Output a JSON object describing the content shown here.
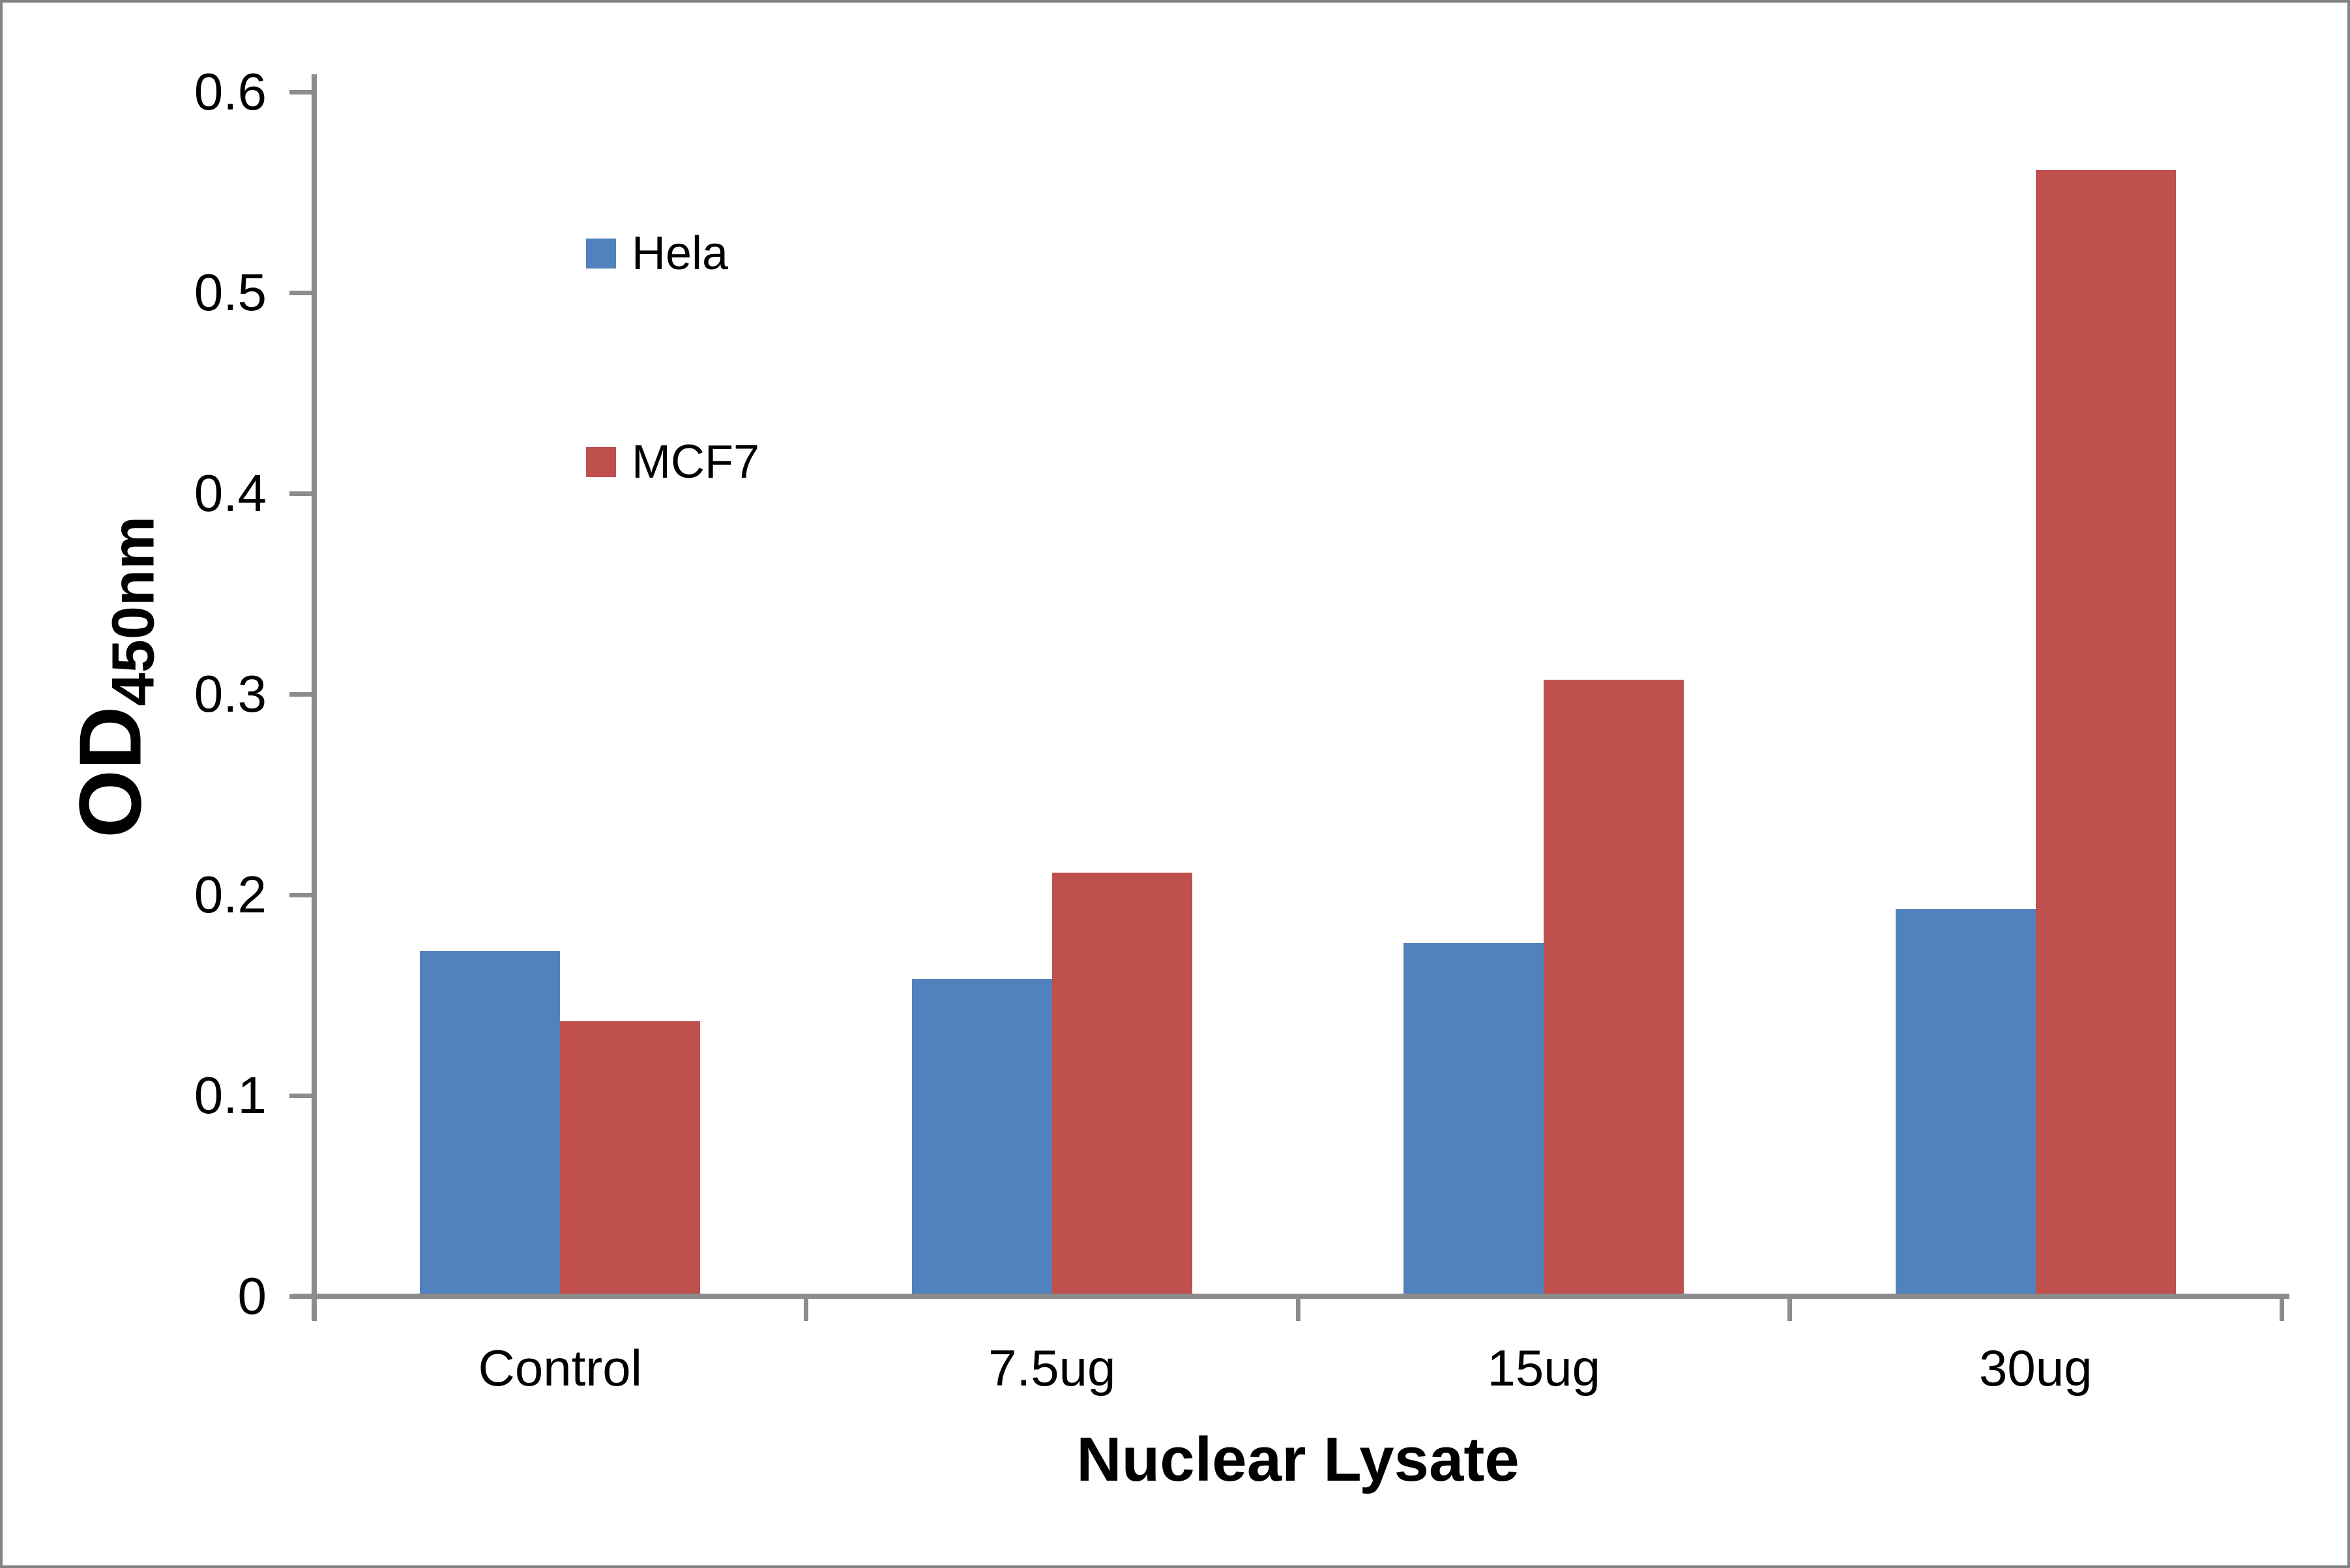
{
  "chart_data": {
    "type": "bar",
    "title": "",
    "categories": [
      "Control",
      "7.5ug",
      "15ug",
      "30ug"
    ],
    "series": [
      {
        "name": "Hela",
        "color": "#5182BE",
        "values": [
          0.172,
          0.158,
          0.176,
          0.193
        ]
      },
      {
        "name": "MCF7",
        "color": "#C0504D",
        "values": [
          0.137,
          0.211,
          0.307,
          0.561
        ]
      }
    ],
    "xlabel": "Nuclear Lysate",
    "ylabel_main": "OD",
    "ylabel_sub": "450nm",
    "ylim": [
      0,
      0.6
    ],
    "ytick_step": 0.1,
    "ytick_labels": [
      "0",
      "0.1",
      "0.2",
      "0.3",
      "0.4",
      "0.5",
      "0.6"
    ],
    "legend_position": "upper-left-inside",
    "legend_entries": [
      "Hela",
      "MCF7"
    ],
    "grid": false,
    "axis_color": "#8C8C8C",
    "text_color": "#000000",
    "background_color": "#FFFFFF",
    "frame_color": "#848484"
  }
}
